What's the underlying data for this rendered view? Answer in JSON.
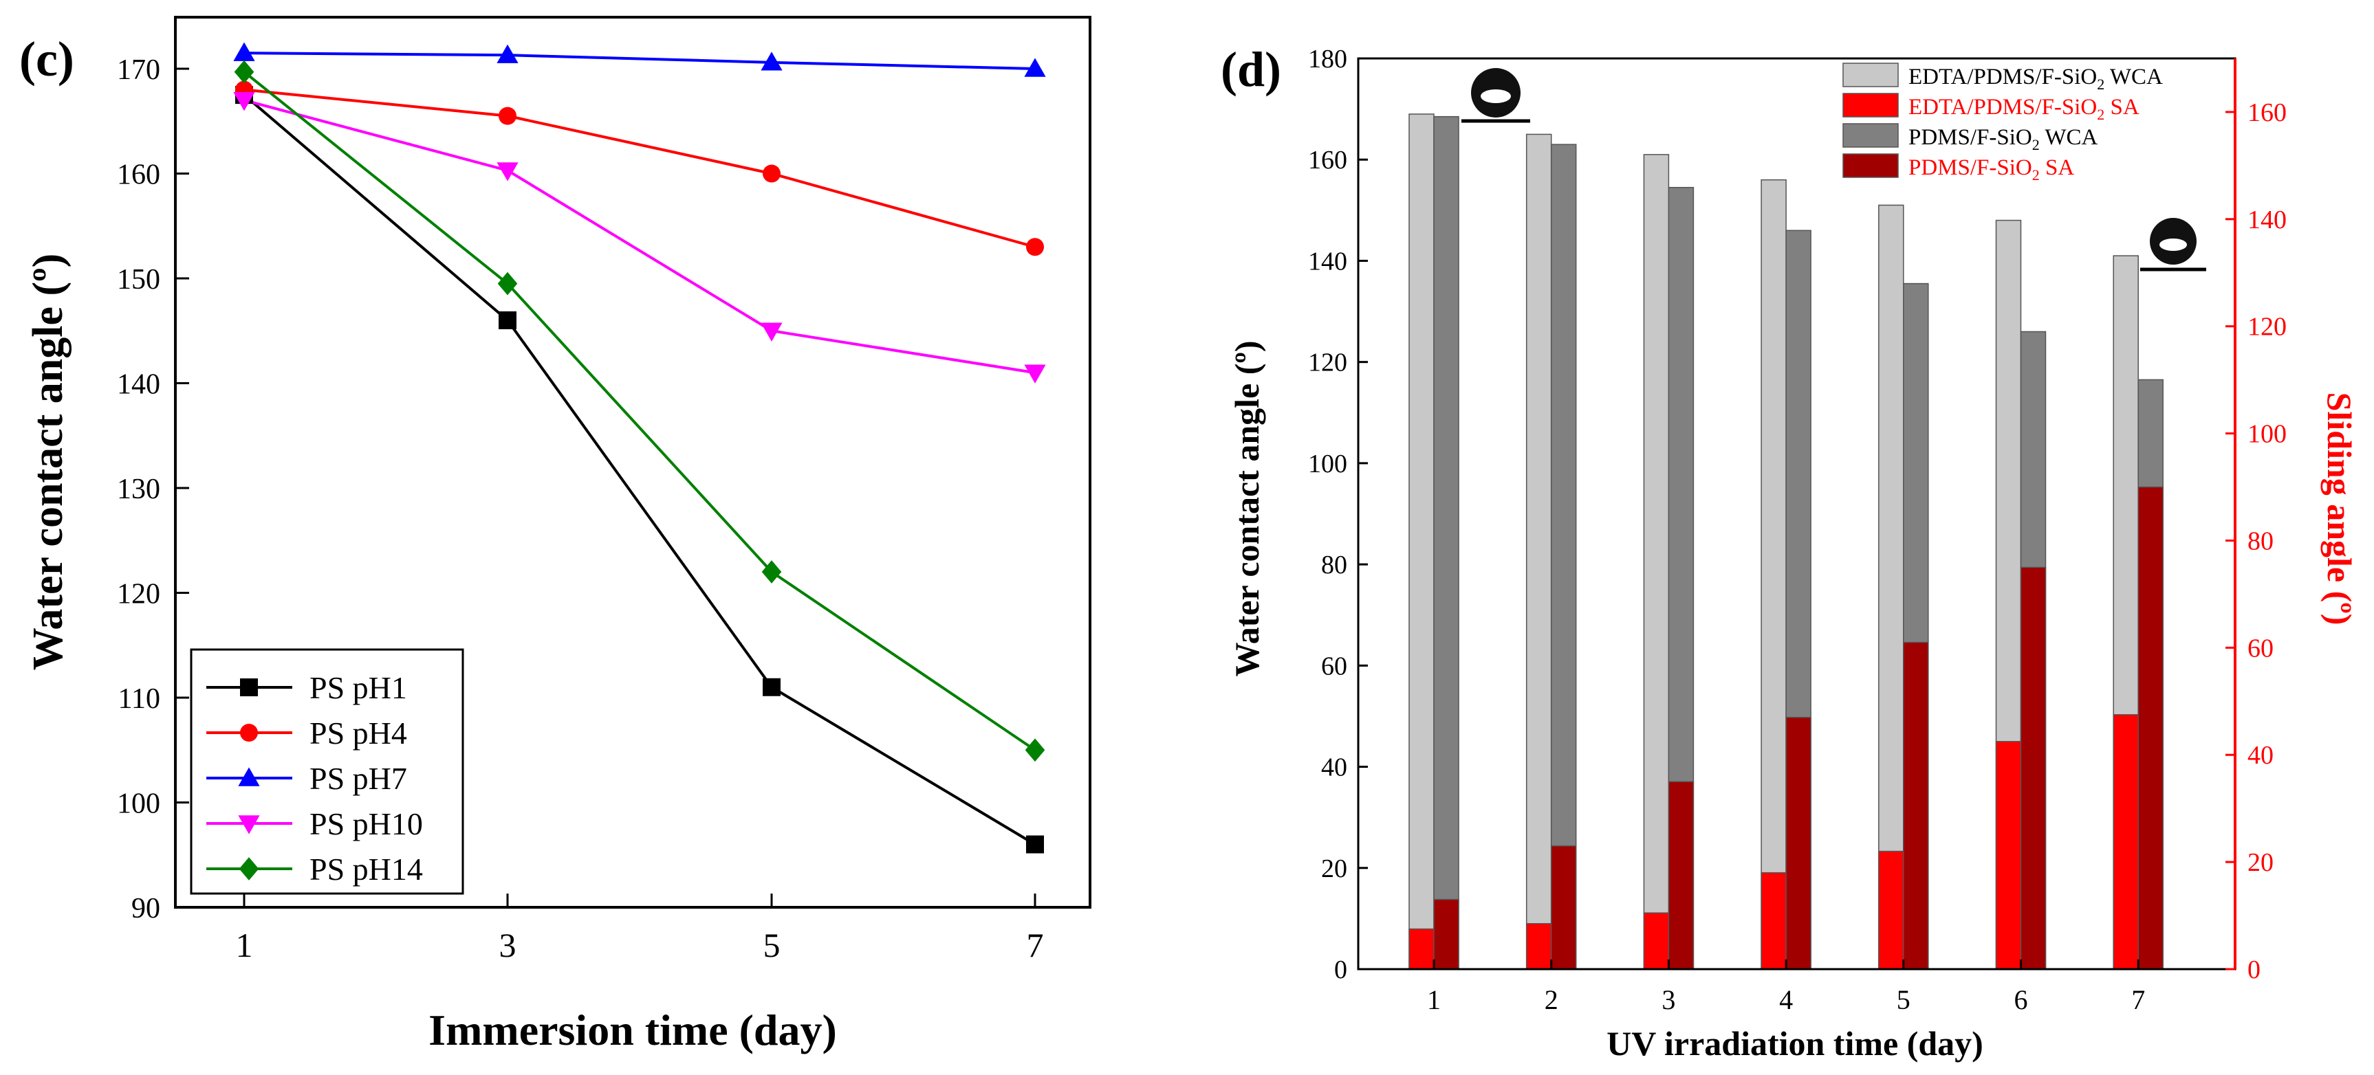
{
  "chart_data": [
    {
      "panel_label": "(c)",
      "type": "line",
      "xlabel": "Immersion time (day)",
      "ylabel": "Water contact angle (º)",
      "x": [
        1,
        3,
        5,
        7
      ],
      "x_ticks": [
        "1",
        "3",
        "5",
        "7"
      ],
      "y_ticks": [
        "90",
        "100",
        "110",
        "120",
        "130",
        "140",
        "150",
        "160",
        "170"
      ],
      "ylim": [
        90,
        175
      ],
      "legend_position": "bottom-left",
      "series": [
        {
          "name": "PS pH1",
          "marker": "square",
          "color": "#000000",
          "values": [
            167.5,
            146,
            111,
            96
          ]
        },
        {
          "name": "PS pH4",
          "marker": "circle",
          "color": "#ff0000",
          "values": [
            168,
            165.5,
            160,
            153
          ]
        },
        {
          "name": "PS pH7",
          "marker": "triangle-up",
          "color": "#0000ff",
          "values": [
            171.5,
            171.3,
            170.6,
            170
          ]
        },
        {
          "name": "PS pH10",
          "marker": "triangle-down",
          "color": "#ff00ff",
          "values": [
            167,
            160.3,
            145,
            141
          ]
        },
        {
          "name": "PS pH14",
          "marker": "diamond",
          "color": "#008000",
          "values": [
            169.7,
            149.5,
            122,
            105
          ]
        }
      ]
    },
    {
      "panel_label": "(d)",
      "type": "bar",
      "xlabel": "UV irradiation time (day)",
      "ylabel": "Water contact angle (º)",
      "y2label": "Sliding angle (º)",
      "categories": [
        "1",
        "2",
        "3",
        "4",
        "5",
        "6",
        "7"
      ],
      "ylim": [
        0,
        180
      ],
      "y2lim": [
        0,
        170
      ],
      "y_ticks": [
        "0",
        "20",
        "40",
        "60",
        "80",
        "100",
        "120",
        "140",
        "160",
        "180"
      ],
      "y2_ticks": [
        "0",
        "20",
        "40",
        "60",
        "80",
        "100",
        "120",
        "140",
        "160"
      ],
      "legend_position": "top-right",
      "series": [
        {
          "name": "EDTA/PDMS/F-SiO",
          "sub": "2",
          "suffix": " WCA",
          "axis": "left",
          "color": "#c8c8c8",
          "label_color": "#000000",
          "values": [
            169,
            165,
            161,
            156,
            151,
            148,
            141
          ]
        },
        {
          "name": "EDTA/PDMS/F-SiO",
          "sub": "2",
          "suffix": " SA",
          "axis": "right",
          "color": "#ff0000",
          "label_color": "#ff0000",
          "values": [
            7.5,
            8.5,
            10.5,
            18,
            22,
            42.5,
            47.5
          ]
        },
        {
          "name": "PDMS/F-SiO",
          "sub": "2",
          "suffix": " WCA",
          "axis": "left",
          "color": "#808080",
          "label_color": "#000000",
          "values": [
            168.5,
            163,
            154.5,
            146,
            135.5,
            126,
            116.5
          ]
        },
        {
          "name": "PDMS/F-SiO",
          "sub": "2",
          "suffix": " SA",
          "axis": "right",
          "color": "#a00000",
          "label_color": "#ff0000",
          "values": [
            13,
            23,
            35,
            47,
            61,
            75,
            90
          ]
        }
      ]
    }
  ]
}
